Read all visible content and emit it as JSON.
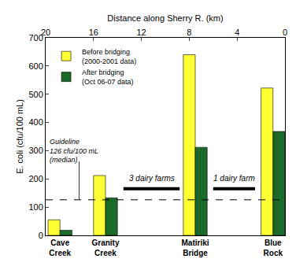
{
  "chart_data": {
    "type": "bar",
    "x_title": "Distance along Sherry R. (km)",
    "y_title": "E. coli (cfu/100 mL)",
    "categories": [
      "Cave Creek",
      "Granity Creek",
      "Matiriki Bridge",
      "Blue Rock"
    ],
    "x": [
      18.8,
      15,
      7.5,
      1
    ],
    "series": [
      {
        "name": "Before bridging (2000-2001 data)",
        "color": "#ffff33",
        "values": [
          55,
          212,
          640,
          522
        ]
      },
      {
        "name": "After bridging (Oct 06-07 data)",
        "color": "#1a6b2a",
        "values": [
          18,
          133,
          312,
          368
        ]
      }
    ],
    "xlim": [
      20,
      0
    ],
    "xticks": [
      20,
      16,
      12,
      8,
      4,
      0
    ],
    "ylim": [
      0,
      700
    ],
    "yticks": [
      0,
      100,
      200,
      300,
      400,
      500,
      600,
      700
    ],
    "legend": "upper left",
    "reference_line": {
      "value": 126,
      "line_style": "dashed",
      "text": [
        "Guideline",
        "126 cfu/100 mL",
        "(median)"
      ]
    },
    "annotations": [
      {
        "text": "3 dairy farms",
        "x": [
          13.5,
          8.8
        ],
        "y": 165
      },
      {
        "text": "1 dairy farm",
        "x": [
          6,
          2.5
        ],
        "y": 165
      }
    ]
  }
}
